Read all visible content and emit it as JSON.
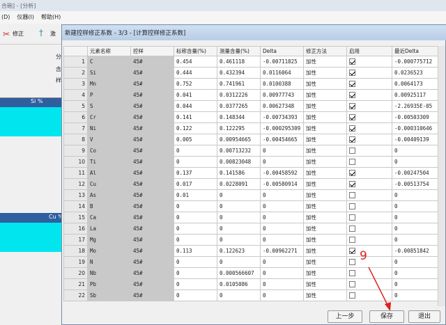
{
  "app": {
    "title": "合砲] - [分析]",
    "menu": [
      "(D)",
      "仪器(I)",
      "帮助(H)"
    ],
    "toolbar": [
      "修正",
      "激"
    ],
    "side_labels": [
      "分",
      "含",
      "样"
    ],
    "grid_headers": [
      "Si %",
      "Cu %"
    ]
  },
  "dialog": {
    "title": "新建控样修正系数 - 3/3 - [计算控样修正系数]",
    "columns": [
      "元素名称",
      "控样",
      "标称含量(%)",
      "测量含量(%)",
      "Delta",
      "修正方法",
      "启用",
      "最近Delta"
    ],
    "rows": [
      {
        "n": 1,
        "element": "C",
        "sample": "45#",
        "nominal": "0.454",
        "measured": "0.461118",
        "delta": "-0.00711825",
        "method": "加性",
        "enabled": true,
        "last_delta": "-0.000775712"
      },
      {
        "n": 2,
        "element": "Si",
        "sample": "45#",
        "nominal": "0.444",
        "measured": "0.432394",
        "delta": "0.0116064",
        "method": "加性",
        "enabled": true,
        "last_delta": "0.0236523"
      },
      {
        "n": 3,
        "element": "Mn",
        "sample": "45#",
        "nominal": "0.752",
        "measured": "0.741961",
        "delta": "0.0100388",
        "method": "加性",
        "enabled": true,
        "last_delta": "0.0064173"
      },
      {
        "n": 4,
        "element": "P",
        "sample": "45#",
        "nominal": "0.041",
        "measured": "0.0312226",
        "delta": "0.00977743",
        "method": "加性",
        "enabled": true,
        "last_delta": "0.00925117"
      },
      {
        "n": 5,
        "element": "S",
        "sample": "45#",
        "nominal": "0.044",
        "measured": "0.0377265",
        "delta": "0.00627348",
        "method": "加性",
        "enabled": true,
        "last_delta": "-2.26935E-05"
      },
      {
        "n": 6,
        "element": "Cr",
        "sample": "45#",
        "nominal": "0.141",
        "measured": "0.148344",
        "delta": "-0.00734393",
        "method": "加性",
        "enabled": true,
        "last_delta": "-0.00503309"
      },
      {
        "n": 7,
        "element": "Ni",
        "sample": "45#",
        "nominal": "0.122",
        "measured": "0.122295",
        "delta": "-0.000295309",
        "method": "加性",
        "enabled": true,
        "last_delta": "-0.000310646"
      },
      {
        "n": 8,
        "element": "V",
        "sample": "45#",
        "nominal": "0.005",
        "measured": "0.00954665",
        "delta": "-0.00454665",
        "method": "加性",
        "enabled": true,
        "last_delta": "-0.00409139"
      },
      {
        "n": 9,
        "element": "Co",
        "sample": "45#",
        "nominal": "0",
        "measured": "0.00713232",
        "delta": "0",
        "method": "加性",
        "enabled": false,
        "last_delta": "0"
      },
      {
        "n": 10,
        "element": "Ti",
        "sample": "45#",
        "nominal": "0",
        "measured": "0.00823048",
        "delta": "0",
        "method": "加性",
        "enabled": false,
        "last_delta": "0"
      },
      {
        "n": 11,
        "element": "Al",
        "sample": "45#",
        "nominal": "0.137",
        "measured": "0.141586",
        "delta": "-0.00458592",
        "method": "加性",
        "enabled": true,
        "last_delta": "-0.00247504"
      },
      {
        "n": 12,
        "element": "Cu",
        "sample": "45#",
        "nominal": "0.017",
        "measured": "0.0228091",
        "delta": "-0.00580914",
        "method": "加性",
        "enabled": true,
        "last_delta": "-0.00513754"
      },
      {
        "n": 13,
        "element": "As",
        "sample": "45#",
        "nominal": "0.01",
        "measured": "0",
        "delta": "0",
        "method": "加性",
        "enabled": false,
        "last_delta": "0"
      },
      {
        "n": 14,
        "element": "B",
        "sample": "45#",
        "nominal": "0",
        "measured": "0",
        "delta": "0",
        "method": "加性",
        "enabled": false,
        "last_delta": "0"
      },
      {
        "n": 15,
        "element": "Ca",
        "sample": "45#",
        "nominal": "0",
        "measured": "0",
        "delta": "0",
        "method": "加性",
        "enabled": false,
        "last_delta": "0"
      },
      {
        "n": 16,
        "element": "La",
        "sample": "45#",
        "nominal": "0",
        "measured": "0",
        "delta": "0",
        "method": "加性",
        "enabled": false,
        "last_delta": "0"
      },
      {
        "n": 17,
        "element": "Mg",
        "sample": "45#",
        "nominal": "0",
        "measured": "0",
        "delta": "0",
        "method": "加性",
        "enabled": false,
        "last_delta": "0"
      },
      {
        "n": 18,
        "element": "Mo",
        "sample": "45#",
        "nominal": "0.113",
        "measured": "0.122623",
        "delta": "-0.00962271",
        "method": "加性",
        "enabled": true,
        "last_delta": "-0.00851842"
      },
      {
        "n": 19,
        "element": "N",
        "sample": "45#",
        "nominal": "0",
        "measured": "0",
        "delta": "0",
        "method": "加性",
        "enabled": false,
        "last_delta": "0"
      },
      {
        "n": 20,
        "element": "Nb",
        "sample": "45#",
        "nominal": "0",
        "measured": "0.000566607",
        "delta": "0",
        "method": "加性",
        "enabled": false,
        "last_delta": "0"
      },
      {
        "n": 21,
        "element": "Pb",
        "sample": "45#",
        "nominal": "0",
        "measured": "0.0105086",
        "delta": "0",
        "method": "加性",
        "enabled": false,
        "last_delta": "0"
      },
      {
        "n": 22,
        "element": "Sb",
        "sample": "45#",
        "nominal": "0",
        "measured": "0",
        "delta": "0",
        "method": "加性",
        "enabled": false,
        "last_delta": "0"
      }
    ],
    "buttons": [
      "上一步",
      "保存",
      "退出"
    ],
    "annotation": "9"
  }
}
